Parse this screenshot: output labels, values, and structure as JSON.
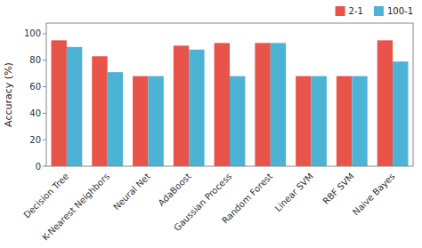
{
  "chart_data": {
    "type": "bar",
    "categories": [
      "Decision Tree",
      "K-Nearest Neighbors",
      "Neural Net",
      "AdaBoost",
      "Gaussian Process",
      "Random Forest",
      "Linear SVM",
      "RBF SVM",
      "Naive Bayes"
    ],
    "series": [
      {
        "name": "2-1",
        "color": "#e8534a",
        "values": [
          95,
          83,
          68,
          91,
          93,
          93,
          68,
          68,
          95
        ]
      },
      {
        "name": "100-1",
        "color": "#4db3d4",
        "values": [
          90,
          71,
          68,
          88,
          68,
          93,
          68,
          68,
          79
        ]
      }
    ],
    "y_label": "Accuracy (%)",
    "ylim": [
      0,
      108
    ],
    "yticks": [
      0,
      20,
      40,
      60,
      80,
      100
    ],
    "grid": false,
    "legend": "upper right"
  }
}
